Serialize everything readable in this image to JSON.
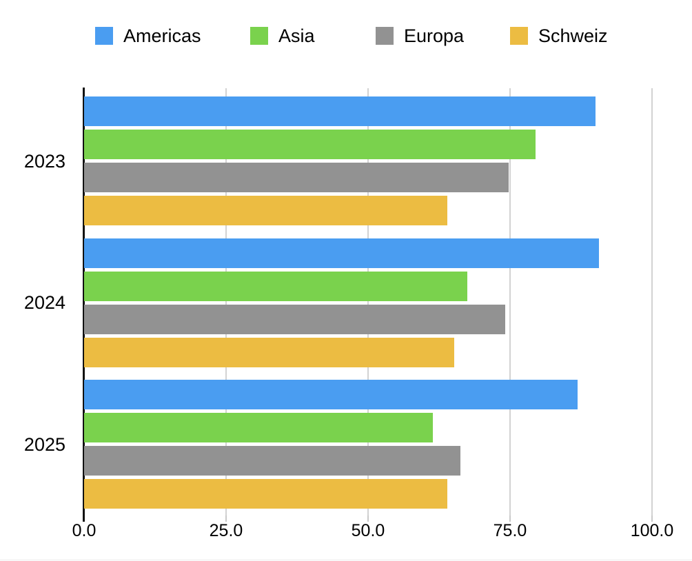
{
  "chart_data": {
    "type": "bar",
    "orientation": "horizontal",
    "title": "",
    "categories": [
      "2023",
      "2024",
      "2025"
    ],
    "series": [
      {
        "name": "Americas",
        "color": "#4A9DF1",
        "values": [
          90.0,
          90.6,
          86.9
        ]
      },
      {
        "name": "Asia",
        "color": "#7AD24D",
        "values": [
          79.5,
          67.5,
          61.4
        ]
      },
      {
        "name": "Europa",
        "color": "#929292",
        "values": [
          74.7,
          74.1,
          66.3
        ]
      },
      {
        "name": "Schweiz",
        "color": "#ECBC42",
        "values": [
          64.0,
          65.2,
          64.0
        ]
      }
    ],
    "xlim": [
      0,
      100
    ],
    "x_ticks": [
      0,
      25,
      50,
      75,
      100
    ],
    "x_tick_labels": [
      "0.0",
      "25.0",
      "50.0",
      "75.0",
      "100.0"
    ],
    "grid": true,
    "legend_position": "top",
    "axis_color": "#111111",
    "gridline_color": "#d2d2d2"
  },
  "layout_note": "grouped horizontal bars, 4 series per year"
}
